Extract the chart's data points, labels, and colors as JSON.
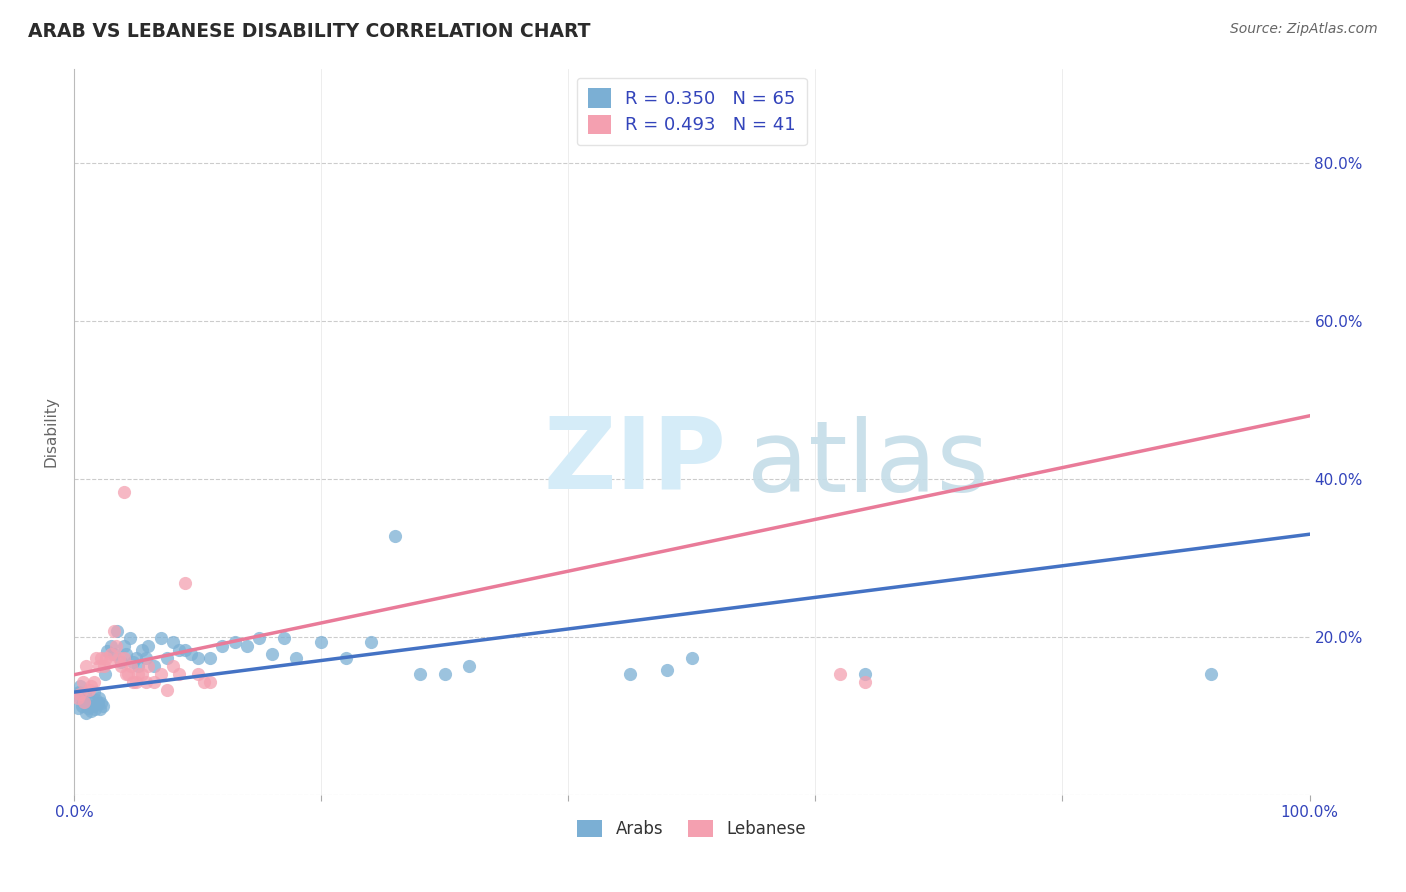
{
  "title": "ARAB VS LEBANESE DISABILITY CORRELATION CHART",
  "source": "Source: ZipAtlas.com",
  "ylabel": "Disability",
  "xlim": [
    0.0,
    1.0
  ],
  "ylim": [
    0.0,
    0.92
  ],
  "xticks": [
    0.0,
    0.2,
    0.4,
    0.6,
    0.8,
    1.0
  ],
  "ytick_vals": [
    0.0,
    0.2,
    0.4,
    0.6,
    0.8
  ],
  "yticklabels_right": [
    "",
    "20.0%",
    "40.0%",
    "60.0%",
    "80.0%"
  ],
  "arab_color": "#7BAFD4",
  "lebanese_color": "#F4A0B0",
  "arab_line_color": "#4472C4",
  "lebanese_line_color": "#E97B99",
  "arab_R": 0.35,
  "arab_N": 65,
  "lebanese_R": 0.493,
  "lebanese_N": 41,
  "legend_label_color": "#3344BB",
  "title_color": "#2B2B2B",
  "source_color": "#666666",
  "grid_color": "#CCCCCC",
  "background_color": "#FFFFFF",
  "watermark_zip_color": "#D5ECF8",
  "watermark_atlas_color": "#C5DDE8",
  "arab_points": [
    [
      0.002,
      0.125
    ],
    [
      0.003,
      0.11
    ],
    [
      0.004,
      0.13
    ],
    [
      0.005,
      0.138
    ],
    [
      0.006,
      0.113
    ],
    [
      0.007,
      0.12
    ],
    [
      0.008,
      0.117
    ],
    [
      0.009,
      0.128
    ],
    [
      0.01,
      0.104
    ],
    [
      0.011,
      0.11
    ],
    [
      0.012,
      0.112
    ],
    [
      0.013,
      0.119
    ],
    [
      0.014,
      0.106
    ],
    [
      0.015,
      0.113
    ],
    [
      0.016,
      0.13
    ],
    [
      0.017,
      0.108
    ],
    [
      0.018,
      0.12
    ],
    [
      0.019,
      0.116
    ],
    [
      0.02,
      0.122
    ],
    [
      0.021,
      0.109
    ],
    [
      0.022,
      0.116
    ],
    [
      0.023,
      0.112
    ],
    [
      0.025,
      0.153
    ],
    [
      0.027,
      0.182
    ],
    [
      0.03,
      0.188
    ],
    [
      0.032,
      0.178
    ],
    [
      0.035,
      0.208
    ],
    [
      0.038,
      0.168
    ],
    [
      0.04,
      0.188
    ],
    [
      0.042,
      0.178
    ],
    [
      0.045,
      0.198
    ],
    [
      0.048,
      0.168
    ],
    [
      0.05,
      0.173
    ],
    [
      0.052,
      0.163
    ],
    [
      0.055,
      0.183
    ],
    [
      0.058,
      0.173
    ],
    [
      0.06,
      0.188
    ],
    [
      0.065,
      0.163
    ],
    [
      0.07,
      0.198
    ],
    [
      0.075,
      0.173
    ],
    [
      0.08,
      0.193
    ],
    [
      0.085,
      0.183
    ],
    [
      0.09,
      0.183
    ],
    [
      0.095,
      0.178
    ],
    [
      0.1,
      0.173
    ],
    [
      0.11,
      0.173
    ],
    [
      0.12,
      0.188
    ],
    [
      0.13,
      0.193
    ],
    [
      0.14,
      0.188
    ],
    [
      0.15,
      0.198
    ],
    [
      0.16,
      0.178
    ],
    [
      0.17,
      0.198
    ],
    [
      0.18,
      0.173
    ],
    [
      0.2,
      0.193
    ],
    [
      0.22,
      0.173
    ],
    [
      0.24,
      0.193
    ],
    [
      0.26,
      0.328
    ],
    [
      0.28,
      0.153
    ],
    [
      0.3,
      0.153
    ],
    [
      0.32,
      0.163
    ],
    [
      0.45,
      0.153
    ],
    [
      0.48,
      0.158
    ],
    [
      0.5,
      0.173
    ],
    [
      0.64,
      0.153
    ],
    [
      0.92,
      0.153
    ]
  ],
  "lebanese_points": [
    [
      0.003,
      0.123
    ],
    [
      0.005,
      0.128
    ],
    [
      0.007,
      0.143
    ],
    [
      0.008,
      0.118
    ],
    [
      0.01,
      0.163
    ],
    [
      0.012,
      0.133
    ],
    [
      0.014,
      0.138
    ],
    [
      0.016,
      0.143
    ],
    [
      0.018,
      0.173
    ],
    [
      0.02,
      0.163
    ],
    [
      0.022,
      0.173
    ],
    [
      0.024,
      0.163
    ],
    [
      0.026,
      0.173
    ],
    [
      0.028,
      0.168
    ],
    [
      0.03,
      0.178
    ],
    [
      0.032,
      0.208
    ],
    [
      0.034,
      0.188
    ],
    [
      0.036,
      0.173
    ],
    [
      0.038,
      0.163
    ],
    [
      0.04,
      0.173
    ],
    [
      0.042,
      0.153
    ],
    [
      0.044,
      0.153
    ],
    [
      0.046,
      0.163
    ],
    [
      0.048,
      0.143
    ],
    [
      0.05,
      0.143
    ],
    [
      0.052,
      0.153
    ],
    [
      0.055,
      0.153
    ],
    [
      0.058,
      0.143
    ],
    [
      0.06,
      0.163
    ],
    [
      0.065,
      0.143
    ],
    [
      0.07,
      0.153
    ],
    [
      0.075,
      0.133
    ],
    [
      0.08,
      0.163
    ],
    [
      0.085,
      0.153
    ],
    [
      0.09,
      0.268
    ],
    [
      0.04,
      0.383
    ],
    [
      0.1,
      0.153
    ],
    [
      0.105,
      0.143
    ],
    [
      0.11,
      0.143
    ],
    [
      0.62,
      0.153
    ],
    [
      0.64,
      0.143
    ]
  ],
  "arab_line": [
    [
      0.0,
      0.13
    ],
    [
      1.0,
      0.33
    ]
  ],
  "lebanese_line": [
    [
      0.0,
      0.152
    ],
    [
      1.0,
      0.48
    ]
  ]
}
